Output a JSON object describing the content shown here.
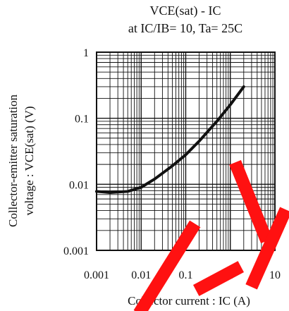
{
  "chart_data": {
    "type": "line",
    "title_lines": [
      "VCE(sat) - IC",
      "at IC/IB= 10, Ta= 25C"
    ],
    "xlabel": "Collector current : IC (A)",
    "ylabel_lines": [
      "Collector-emitter saturation",
      "voltage : VCE(sat) (V)"
    ],
    "x_scale": "log",
    "y_scale": "log",
    "xlim": [
      0.001,
      10
    ],
    "ylim": [
      0.001,
      1
    ],
    "x_ticks": [
      {
        "value": 0.001,
        "label": "0.001"
      },
      {
        "value": 0.01,
        "label": "0.01"
      },
      {
        "value": 0.1,
        "label": "0.1"
      },
      {
        "value": 1,
        "label": "1"
      },
      {
        "value": 10,
        "label": "10"
      }
    ],
    "y_ticks": [
      {
        "value": 0.001,
        "label": "0.001"
      },
      {
        "value": 0.01,
        "label": "0.01"
      },
      {
        "value": 0.1,
        "label": "0.1"
      },
      {
        "value": 1,
        "label": "1"
      }
    ],
    "grid": true,
    "series": [
      {
        "x": [
          0.001,
          0.002,
          0.005,
          0.01,
          0.02,
          0.05,
          0.1,
          0.2,
          0.5,
          1,
          2
        ],
        "y": [
          0.0078,
          0.0075,
          0.0078,
          0.009,
          0.012,
          0.019,
          0.028,
          0.045,
          0.09,
          0.16,
          0.3
        ]
      }
    ]
  },
  "overlay": {
    "watermark_color": "#ff1111"
  }
}
